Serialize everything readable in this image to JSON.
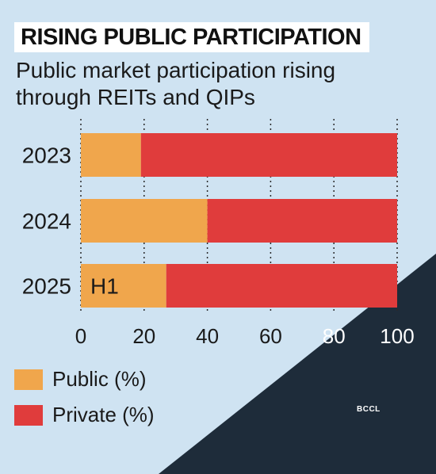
{
  "header": {
    "title": "RISING PUBLIC PARTICIPATION",
    "subtitle": "Public market participation rising through REITs and QIPs"
  },
  "chart_data": {
    "type": "bar",
    "orientation": "horizontal",
    "stacked": true,
    "categories": [
      "2023",
      "2024",
      "2025"
    ],
    "series": [
      {
        "name": "Public (%)",
        "values": [
          19,
          40,
          27
        ],
        "color": "#f0a64c"
      },
      {
        "name": "Private (%)",
        "values": [
          81,
          60,
          73
        ],
        "color": "#e03c3c"
      }
    ],
    "bar_annotations": [
      "",
      "",
      "H1"
    ],
    "xlim": [
      0,
      100
    ],
    "xticks": [
      "0",
      "20",
      "40",
      "60",
      "80",
      "100"
    ],
    "grid": "vertical dotted",
    "legend_position": "bottom-left"
  },
  "legend": [
    {
      "label": "Public (%)",
      "color": "#f0a64c"
    },
    {
      "label": "Private (%)",
      "color": "#e03c3c"
    }
  ],
  "credit": "BCCL",
  "colors": {
    "background": "#cfe3f2",
    "dark_triangle": "#1e2c3a",
    "public": "#f0a64c",
    "private": "#e03c3c"
  }
}
